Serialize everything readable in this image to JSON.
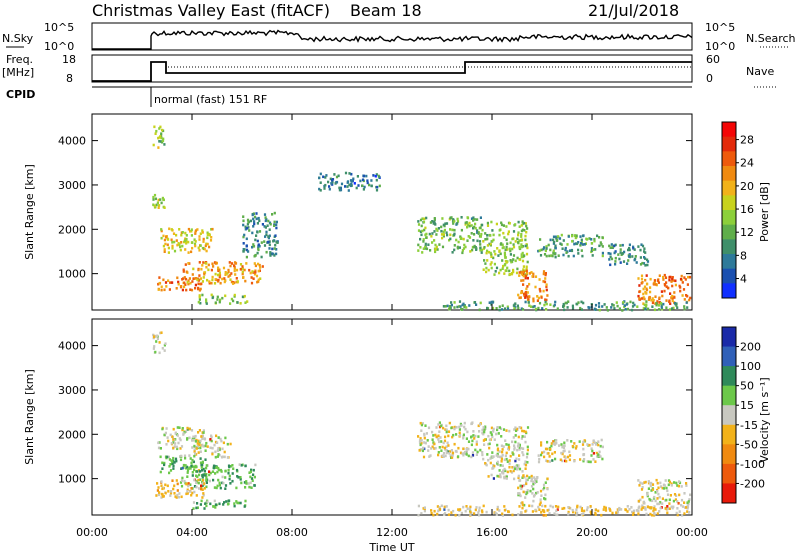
{
  "header": {
    "title": "Christmas Valley East (fitACF)",
    "beam": "Beam 18",
    "date": "21/Jul/2018"
  },
  "top_panels": {
    "nsky_label": "N.Sky",
    "nsky_ticks": [
      "10^5",
      "10^0"
    ],
    "nsearch_label": "N.Search",
    "nsearch_ticks": [
      "10^5",
      "10^0"
    ],
    "freq_label_1": "Freq.",
    "freq_label_2": "[MHz]",
    "freq_ticks": [
      "18",
      "8"
    ],
    "nave_label": "Nave",
    "nave_ticks": [
      "60",
      "0"
    ],
    "cpid_label": "CPID",
    "cpid_text": "normal (fast) 151 RF"
  },
  "chart_data": [
    {
      "type": "heatmap",
      "name": "power",
      "ylabel": "Slant Range [km]",
      "yticks": [
        "4000",
        "3000",
        "2000",
        "1000"
      ],
      "ylim": [
        180,
        4600
      ],
      "xlim": [
        0,
        24
      ],
      "colorbar_label": "Power [dB]",
      "colorbar_ticks": [
        "28",
        "24",
        "20",
        "16",
        "12",
        "8",
        "4"
      ],
      "colors": [
        "#1030ff",
        "#1a50b0",
        "#2e7a9a",
        "#3f8f6a",
        "#5fae4a",
        "#8ccf3a",
        "#c8d21c",
        "#f2b21a",
        "#f08a10",
        "#ee5a0c",
        "#e32a0a",
        "#f40606"
      ],
      "echo_regions": [
        {
          "t": [
            2.4,
            2.9
          ],
          "r": [
            3850,
            4350
          ],
          "db": 14
        },
        {
          "t": [
            2.4,
            2.9
          ],
          "r": [
            2500,
            2800
          ],
          "db": 16
        },
        {
          "t": [
            2.7,
            4.8
          ],
          "r": [
            1500,
            2050
          ],
          "db": 18
        },
        {
          "t": [
            2.6,
            4.5
          ],
          "r": [
            650,
            950
          ],
          "db": 25
        },
        {
          "t": [
            3.6,
            6.8
          ],
          "r": [
            800,
            1300
          ],
          "db": 22
        },
        {
          "t": [
            4.2,
            6.2
          ],
          "r": [
            350,
            550
          ],
          "db": 14
        },
        {
          "t": [
            6.0,
            7.4
          ],
          "r": [
            1400,
            2400
          ],
          "db": 8
        },
        {
          "t": [
            9.0,
            11.5
          ],
          "r": [
            2900,
            3300
          ],
          "db": 6
        },
        {
          "t": [
            13.0,
            15.6
          ],
          "r": [
            1500,
            2300
          ],
          "db": 12
        },
        {
          "t": [
            15.6,
            17.4
          ],
          "r": [
            1000,
            2200
          ],
          "db": 14
        },
        {
          "t": [
            17.0,
            18.2
          ],
          "r": [
            400,
            1100
          ],
          "db": 24
        },
        {
          "t": [
            17.8,
            20.4
          ],
          "r": [
            1400,
            1900
          ],
          "db": 10
        },
        {
          "t": [
            20.6,
            22.2
          ],
          "r": [
            1200,
            1700
          ],
          "db": 8
        },
        {
          "t": [
            21.8,
            23.9
          ],
          "r": [
            350,
            1000
          ],
          "db": 24
        },
        {
          "t": [
            14.0,
            23.9
          ],
          "r": [
            200,
            400
          ],
          "db": 10
        }
      ]
    },
    {
      "type": "heatmap",
      "name": "velocity",
      "ylabel": "Slant Range [km]",
      "yticks": [
        "4000",
        "3000",
        "2000",
        "1000"
      ],
      "ylim": [
        180,
        4600
      ],
      "xlim": [
        0,
        24
      ],
      "xticks": [
        "00:00",
        "04:00",
        "08:00",
        "12:00",
        "16:00",
        "20:00",
        "00:00"
      ],
      "xlabel": "Time UT",
      "colorbar_label": "Velocity [m s⁻¹]",
      "colorbar_ticks": [
        "200",
        "100",
        "50",
        "15",
        "-15",
        "-50",
        "-100",
        "-200"
      ],
      "colors": [
        "#1a2aa8",
        "#3060b8",
        "#2f8a5a",
        "#6cc84a",
        "#c8c8c0",
        "#f2b21a",
        "#f08a10",
        "#ee5a0c",
        "#e81a0a"
      ],
      "echo_regions": [
        {
          "t": [
            2.4,
            2.9
          ],
          "r": [
            3850,
            4350
          ],
          "v": 0
        },
        {
          "t": [
            2.6,
            4.5
          ],
          "r": [
            1700,
            2200
          ],
          "v": 0
        },
        {
          "t": [
            4.0,
            5.5
          ],
          "r": [
            1500,
            2000
          ],
          "v": 0
        },
        {
          "t": [
            2.7,
            4.5
          ],
          "r": [
            1150,
            1550
          ],
          "v": 40
        },
        {
          "t": [
            3.5,
            6.5
          ],
          "r": [
            800,
            1350
          ],
          "v": 40
        },
        {
          "t": [
            2.5,
            4.5
          ],
          "r": [
            600,
            1000
          ],
          "v": -30
        },
        {
          "t": [
            4.0,
            6.2
          ],
          "r": [
            350,
            550
          ],
          "v": 40
        },
        {
          "t": [
            13.0,
            15.6
          ],
          "r": [
            1500,
            2300
          ],
          "v": 0
        },
        {
          "t": [
            15.6,
            17.4
          ],
          "r": [
            1000,
            2200
          ],
          "v": 0
        },
        {
          "t": [
            17.0,
            18.2
          ],
          "r": [
            400,
            1100
          ],
          "v": 0
        },
        {
          "t": [
            17.8,
            20.4
          ],
          "r": [
            1400,
            1900
          ],
          "v": 0
        },
        {
          "t": [
            21.8,
            23.9
          ],
          "r": [
            350,
            1000
          ],
          "v": 0
        },
        {
          "t": [
            13.0,
            23.9
          ],
          "r": [
            200,
            420
          ],
          "v": -20
        }
      ]
    }
  ]
}
